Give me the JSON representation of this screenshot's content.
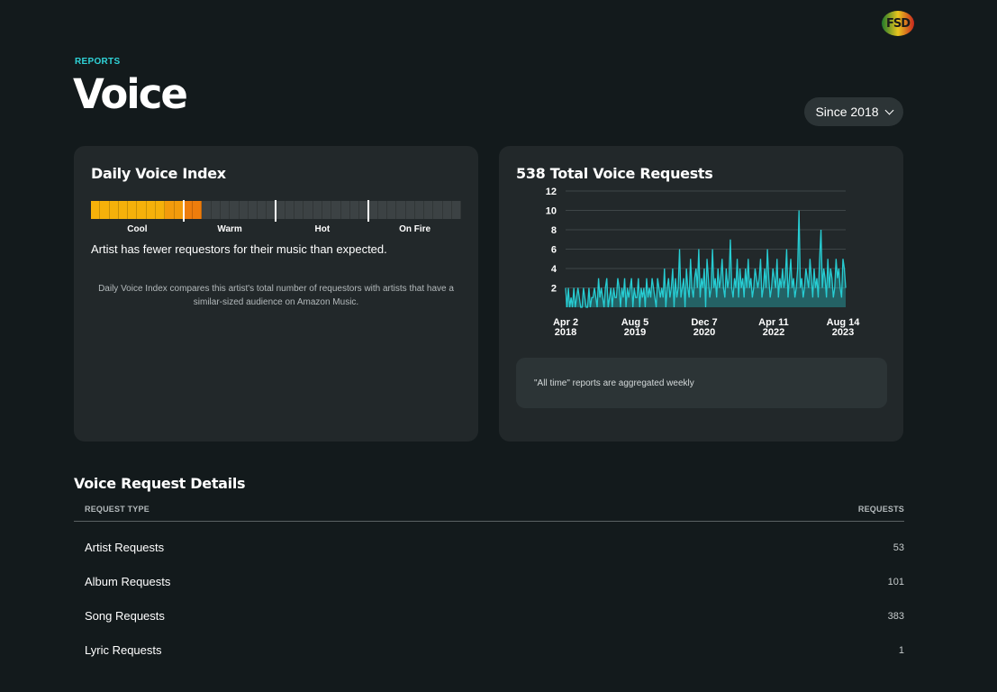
{
  "header": {
    "avatar_text": "FSD",
    "eyebrow": "REPORTS",
    "title": "Voice",
    "range_label": "Since 2018"
  },
  "voice_index": {
    "title": "Daily Voice Index",
    "labels": [
      "Cool",
      "Warm",
      "Hot",
      "On Fire"
    ],
    "level": 0.3,
    "status": "Artist has fewer requestors for their music than expected.",
    "note": "Daily Voice Index compares this artist's total number of requestors with artists that have a similar-sized audience on Amazon Music.",
    "colors": {
      "cool": "#f5b10a",
      "warm_active": "#ee7d0c",
      "inactive": "#3c4244"
    }
  },
  "total_requests": {
    "title": "538 Total Voice Requests",
    "aggregation_note": "\"All time\" reports are aggregated weekly"
  },
  "chart_data": {
    "type": "area",
    "title": "538 Total Voice Requests",
    "xlabel": "",
    "ylabel": "",
    "ylim": [
      0,
      12
    ],
    "yticks": [
      2,
      4,
      6,
      8,
      10,
      12
    ],
    "x_tick_labels": [
      {
        "date": "Apr 2",
        "year": "2018"
      },
      {
        "date": "Aug 5",
        "year": "2019"
      },
      {
        "date": "Dec 7",
        "year": "2020"
      },
      {
        "date": "Apr 11",
        "year": "2022"
      },
      {
        "date": "Aug 14",
        "year": "2023"
      }
    ],
    "x_start": "2018-04-02",
    "x_end": "2023-08-14",
    "interval": "weekly",
    "grid": true,
    "color": "#27cdd3",
    "series": [
      {
        "values": [
          2,
          0,
          2,
          0,
          1,
          0,
          2,
          0,
          1,
          2,
          1,
          0,
          0,
          2,
          1,
          0,
          0,
          2,
          0,
          1,
          1,
          2,
          1,
          0,
          3,
          1,
          2,
          1,
          0,
          2,
          3,
          0,
          1,
          2,
          0,
          2,
          1,
          1,
          3,
          2,
          0,
          2,
          1,
          3,
          0,
          2,
          1,
          2,
          3,
          0,
          2,
          1,
          1,
          3,
          0,
          2,
          1,
          2,
          0,
          3,
          1,
          2,
          1,
          3,
          2,
          1,
          0,
          3,
          2,
          1,
          2,
          1,
          4,
          0,
          2,
          3,
          1,
          2,
          4,
          0,
          3,
          1,
          2,
          6,
          1,
          2,
          3,
          0,
          4,
          2,
          1,
          5,
          2,
          1,
          3,
          4,
          2,
          6,
          1,
          3,
          2,
          4,
          0,
          5,
          3,
          1,
          2,
          6,
          2,
          3,
          1,
          4,
          2,
          3,
          5,
          2,
          1,
          4,
          2,
          3,
          7,
          2,
          1,
          3,
          2,
          5,
          1,
          4,
          2,
          3,
          1,
          4,
          2,
          5,
          2,
          3,
          1,
          2,
          4,
          3,
          2,
          3,
          5,
          1,
          2,
          4,
          2,
          6,
          3,
          1,
          2,
          4,
          3,
          2,
          5,
          1,
          3,
          2,
          4,
          2,
          3,
          6,
          1,
          3,
          5,
          2,
          3,
          1,
          2,
          4,
          10,
          2,
          3,
          1,
          2,
          4,
          3,
          2,
          5,
          3,
          1,
          4,
          2,
          3,
          1,
          5,
          8,
          2,
          4,
          3,
          1,
          5,
          2,
          4,
          3,
          1,
          2,
          5,
          3,
          4,
          2,
          1,
          5,
          4,
          2
        ]
      }
    ]
  },
  "details": {
    "title": "Voice Request Details",
    "col_type": "REQUEST TYPE",
    "col_requests": "REQUESTS",
    "rows": [
      {
        "type": "Artist Requests",
        "count": "53"
      },
      {
        "type": "Album Requests",
        "count": "101"
      },
      {
        "type": "Song Requests",
        "count": "383"
      },
      {
        "type": "Lyric Requests",
        "count": "1"
      }
    ]
  }
}
